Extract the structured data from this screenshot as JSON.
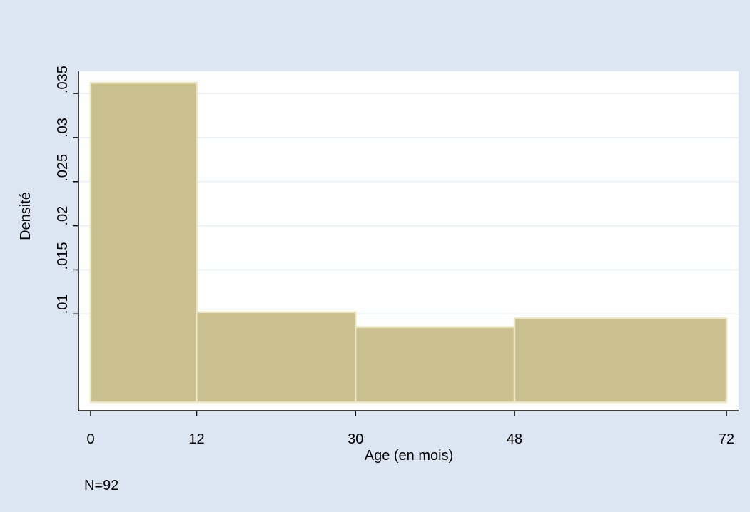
{
  "chart_data": {
    "type": "bar",
    "subtype": "histogram",
    "bins": [
      {
        "start": 0,
        "end": 12,
        "density": 0.0362
      },
      {
        "start": 12,
        "end": 30,
        "density": 0.0102
      },
      {
        "start": 30,
        "end": 48,
        "density": 0.0085
      },
      {
        "start": 48,
        "end": 72,
        "density": 0.0095
      }
    ],
    "xlabel": "Age (en mois)",
    "ylabel": "Densité",
    "x_ticks": [
      0,
      12,
      30,
      48,
      72
    ],
    "x_tick_labels": [
      "0",
      "12",
      "30",
      "48",
      "72"
    ],
    "y_ticks": [
      0.01,
      0.015,
      0.02,
      0.025,
      0.03,
      0.035
    ],
    "y_tick_labels": [
      ".01",
      ".015",
      ".02",
      ".025",
      ".03",
      ".035"
    ],
    "xlim": [
      0,
      72
    ],
    "ylim": [
      0,
      0.035
    ],
    "grid": "horizontal",
    "note": "N=92",
    "colors": {
      "background": "#dce6f2",
      "plot_area": "#ffffff",
      "bar_fill": "#c9bf8f",
      "bar_stroke": "#ece4bc",
      "gridline": "#e8eef5",
      "axis": "#000000"
    }
  }
}
